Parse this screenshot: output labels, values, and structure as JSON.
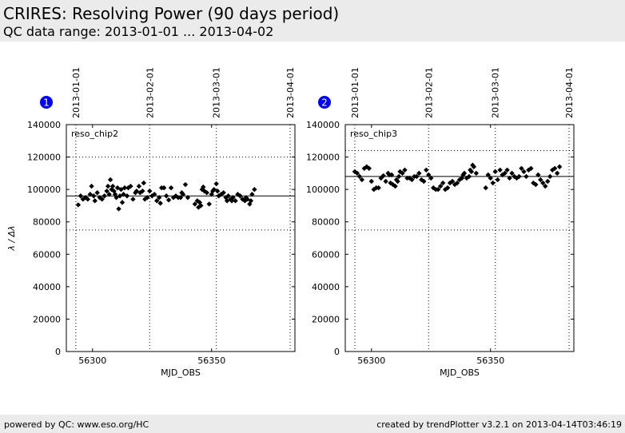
{
  "header": {
    "title": "CRIRES: Resolving Power (90 days period)",
    "subtitle": "QC data range: 2013-01-01 ... 2013-04-02"
  },
  "footer": {
    "left": "powered by QC: www.eso.org/HC",
    "right": "created by trendPlotter v3.2.1 on 2013-04-14T03:46:19"
  },
  "colors": {
    "badge": "#0000ff",
    "points": "#000000",
    "header_bg": "#ebebeb"
  },
  "chart_data": [
    {
      "type": "scatter",
      "badge": "1",
      "label": "reso_chip2",
      "xlabel": "MJD_OBS",
      "ylabel": "λ / Δλ",
      "xlim": [
        56289,
        56385
      ],
      "ylim": [
        0,
        140000
      ],
      "xticks": [
        56300,
        56350
      ],
      "yticks": [
        0,
        20000,
        40000,
        60000,
        80000,
        100000,
        120000,
        140000
      ],
      "date_ticks": [
        {
          "x": 56293,
          "label": "2013-01-01"
        },
        {
          "x": 56324,
          "label": "2013-02-01"
        },
        {
          "x": 56352,
          "label": "2013-03-01"
        },
        {
          "x": 56383,
          "label": "2013-04-01"
        }
      ],
      "median": 96000,
      "limits": [
        75000,
        120000
      ],
      "grid": "dotted",
      "points": [
        [
          56294,
          90500
        ],
        [
          56295,
          96000
        ],
        [
          56296,
          94000
        ],
        [
          56297,
          95000
        ],
        [
          56298,
          94000
        ],
        [
          56299,
          97000
        ],
        [
          56299.6,
          102000
        ],
        [
          56300.5,
          96000
        ],
        [
          56301,
          93000
        ],
        [
          56302,
          98000
        ],
        [
          56303,
          95000
        ],
        [
          56304,
          94000
        ],
        [
          56305,
          96000
        ],
        [
          56306,
          99000
        ],
        [
          56306.5,
          102000
        ],
        [
          56307,
          97000
        ],
        [
          56307.5,
          106000
        ],
        [
          56308,
          100000
        ],
        [
          56308.5,
          102000
        ],
        [
          56309,
          99000
        ],
        [
          56309.5,
          97000
        ],
        [
          56310,
          95000
        ],
        [
          56310.5,
          101000
        ],
        [
          56311,
          88000
        ],
        [
          56311.5,
          96000
        ],
        [
          56312,
          100000
        ],
        [
          56312.5,
          92000
        ],
        [
          56313,
          97000
        ],
        [
          56313.5,
          101000
        ],
        [
          56314.5,
          96000
        ],
        [
          56315,
          101000
        ],
        [
          56316,
          102000
        ],
        [
          56317,
          94000
        ],
        [
          56318,
          98000
        ],
        [
          56318.5,
          99000
        ],
        [
          56319.5,
          102000
        ],
        [
          56320,
          98000
        ],
        [
          56321,
          99000
        ],
        [
          56321.5,
          104000
        ],
        [
          56322,
          94000
        ],
        [
          56323,
          95000
        ],
        [
          56324,
          99000
        ],
        [
          56325,
          96000
        ],
        [
          56326,
          97000
        ],
        [
          56327,
          93000
        ],
        [
          56328,
          95000
        ],
        [
          56328.5,
          91500
        ],
        [
          56329,
          101000
        ],
        [
          56330,
          101000
        ],
        [
          56331,
          96000
        ],
        [
          56332,
          93500
        ],
        [
          56333,
          101000
        ],
        [
          56334,
          95000
        ],
        [
          56335,
          96000
        ],
        [
          56336,
          95000
        ],
        [
          56337,
          95000
        ],
        [
          56337.5,
          98000
        ],
        [
          56338,
          97000
        ],
        [
          56339,
          103000
        ],
        [
          56340,
          95000
        ],
        [
          56343,
          91000
        ],
        [
          56344,
          93000
        ],
        [
          56344.5,
          89000
        ],
        [
          56345,
          92000
        ],
        [
          56345.5,
          90000
        ],
        [
          56346,
          100000
        ],
        [
          56346.5,
          101500
        ],
        [
          56347,
          99000
        ],
        [
          56348,
          98000
        ],
        [
          56349,
          91000
        ],
        [
          56350,
          97000
        ],
        [
          56350.5,
          99000
        ],
        [
          56351,
          100000
        ],
        [
          56352,
          103500
        ],
        [
          56352.5,
          99000
        ],
        [
          56353,
          96000
        ],
        [
          56354,
          97000
        ],
        [
          56355,
          98000
        ],
        [
          56356,
          95000
        ],
        [
          56356.5,
          93000
        ],
        [
          56357,
          96000
        ],
        [
          56358,
          94000
        ],
        [
          56358.5,
          93000
        ],
        [
          56359,
          95000
        ],
        [
          56360,
          93000
        ],
        [
          56361,
          97000
        ],
        [
          56362,
          96000
        ],
        [
          56363,
          94000
        ],
        [
          56364,
          93000
        ],
        [
          56364.5,
          95000
        ],
        [
          56365,
          94000
        ],
        [
          56366,
          91000
        ],
        [
          56366.5,
          93000
        ],
        [
          56367,
          97000
        ],
        [
          56368,
          100000
        ]
      ]
    },
    {
      "type": "scatter",
      "badge": "2",
      "label": "reso_chip3",
      "xlabel": "MJD_OBS",
      "ylabel": "",
      "xlim": [
        56289,
        56385
      ],
      "ylim": [
        0,
        140000
      ],
      "xticks": [
        56300,
        56350
      ],
      "yticks": [
        0,
        20000,
        40000,
        60000,
        80000,
        100000,
        120000,
        140000
      ],
      "date_ticks": [
        {
          "x": 56293,
          "label": "2013-01-01"
        },
        {
          "x": 56324,
          "label": "2013-02-01"
        },
        {
          "x": 56352,
          "label": "2013-03-01"
        },
        {
          "x": 56383,
          "label": "2013-04-01"
        }
      ],
      "median": 108000,
      "limits": [
        75000,
        124000
      ],
      "grid": "dotted",
      "points": [
        [
          56293,
          111000
        ],
        [
          56294,
          110000
        ],
        [
          56295,
          108000
        ],
        [
          56296,
          106000
        ],
        [
          56297,
          113000
        ],
        [
          56298,
          114000
        ],
        [
          56299,
          113000
        ],
        [
          56300,
          105000
        ],
        [
          56301,
          100000
        ],
        [
          56302,
          101000
        ],
        [
          56303,
          101000
        ],
        [
          56304,
          107000
        ],
        [
          56305,
          108500
        ],
        [
          56306,
          105000
        ],
        [
          56307,
          110000
        ],
        [
          56307.5,
          109000
        ],
        [
          56308,
          104000
        ],
        [
          56308.5,
          109000
        ],
        [
          56309,
          103000
        ],
        [
          56310,
          102000
        ],
        [
          56310.5,
          106000
        ],
        [
          56311,
          105000
        ],
        [
          56311.5,
          108000
        ],
        [
          56312,
          111000
        ],
        [
          56313,
          110000
        ],
        [
          56314,
          112000
        ],
        [
          56315,
          107000
        ],
        [
          56316,
          107000
        ],
        [
          56317,
          106000
        ],
        [
          56318,
          108000
        ],
        [
          56319,
          108000
        ],
        [
          56320,
          110000
        ],
        [
          56321,
          106000
        ],
        [
          56322,
          105000
        ],
        [
          56323,
          112000
        ],
        [
          56324,
          109000
        ],
        [
          56325,
          107000
        ],
        [
          56326,
          101000
        ],
        [
          56327,
          100000
        ],
        [
          56328,
          100000
        ],
        [
          56329,
          102000
        ],
        [
          56330,
          104000
        ],
        [
          56331,
          100000
        ],
        [
          56332,
          101000
        ],
        [
          56333,
          104000
        ],
        [
          56334,
          105000
        ],
        [
          56335,
          103000
        ],
        [
          56336,
          104000
        ],
        [
          56337,
          106000
        ],
        [
          56338,
          107000
        ],
        [
          56338.5,
          109000
        ],
        [
          56339,
          110000
        ],
        [
          56340,
          107000
        ],
        [
          56341,
          108000
        ],
        [
          56341.5,
          112000
        ],
        [
          56342,
          111000
        ],
        [
          56342.5,
          115000
        ],
        [
          56343,
          114000
        ],
        [
          56344,
          110000
        ],
        [
          56348,
          101000
        ],
        [
          56349,
          109000
        ],
        [
          56350,
          107000
        ],
        [
          56351,
          104000
        ],
        [
          56352,
          111000
        ],
        [
          56353,
          106000
        ],
        [
          56354,
          112000
        ],
        [
          56355,
          109000
        ],
        [
          56356,
          110000
        ],
        [
          56357,
          112000
        ],
        [
          56358,
          107000
        ],
        [
          56359,
          110000
        ],
        [
          56360,
          108000
        ],
        [
          56361,
          107000
        ],
        [
          56362,
          108000
        ],
        [
          56363,
          113000
        ],
        [
          56364,
          111000
        ],
        [
          56365,
          108000
        ],
        [
          56366,
          112000
        ],
        [
          56367,
          113000
        ],
        [
          56368,
          104000
        ],
        [
          56369,
          103000
        ],
        [
          56370,
          109000
        ],
        [
          56371,
          106000
        ],
        [
          56372,
          104000
        ],
        [
          56373,
          102000
        ],
        [
          56374,
          105000
        ],
        [
          56375,
          108000
        ],
        [
          56376,
          112000
        ],
        [
          56377,
          113000
        ],
        [
          56378,
          110000
        ],
        [
          56379,
          114000
        ]
      ]
    }
  ]
}
